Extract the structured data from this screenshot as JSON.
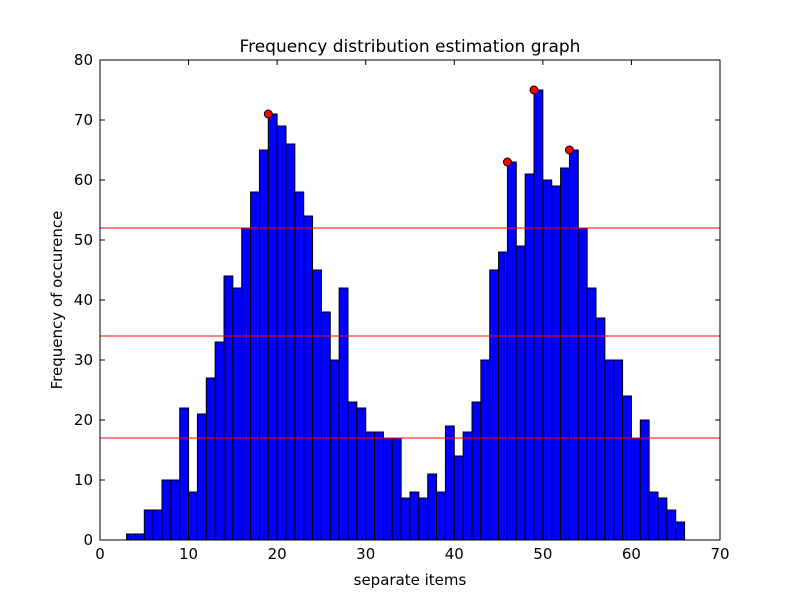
{
  "chart_data": {
    "type": "bar",
    "title": "Frequency distribution estimation graph",
    "xlabel": "separate items",
    "ylabel": "Frequency of occurence",
    "xlim": [
      0,
      70
    ],
    "ylim": [
      0,
      80
    ],
    "xticks": [
      "0",
      "10",
      "20",
      "30",
      "40",
      "50",
      "60",
      "70"
    ],
    "yticks": [
      "0",
      "10",
      "20",
      "30",
      "40",
      "50",
      "60",
      "70",
      "80"
    ],
    "grid": false,
    "bar_width": 1,
    "bar_color": "#0000ff",
    "bar_edge_color": "#000000",
    "x": [
      3,
      4,
      5,
      6,
      7,
      8,
      9,
      10,
      11,
      12,
      13,
      14,
      15,
      16,
      17,
      18,
      19,
      20,
      21,
      22,
      23,
      24,
      25,
      26,
      27,
      28,
      29,
      30,
      31,
      32,
      33,
      34,
      35,
      36,
      37,
      38,
      39,
      40,
      41,
      42,
      43,
      44,
      45,
      46,
      47,
      48,
      49,
      50,
      51,
      52,
      53,
      54,
      55,
      56,
      57,
      58,
      59,
      60,
      61,
      62,
      63,
      64,
      65
    ],
    "values": [
      1,
      1,
      5,
      5,
      10,
      10,
      22,
      8,
      21,
      27,
      33,
      44,
      42,
      52,
      58,
      65,
      71,
      69,
      66,
      58,
      54,
      45,
      38,
      30,
      42,
      23,
      22,
      18,
      18,
      17,
      17,
      7,
      8,
      7,
      11,
      8,
      19,
      14,
      18,
      23,
      30,
      45,
      48,
      63,
      49,
      61,
      75,
      60,
      59,
      62,
      65,
      52,
      42,
      37,
      30,
      30,
      24,
      17,
      20,
      8,
      7,
      5,
      3
    ],
    "reference_lines": {
      "color": "#ff0000",
      "y": [
        17,
        34,
        52
      ]
    },
    "peaks": {
      "color": "#ff0000",
      "points": [
        {
          "x": 19,
          "y": 71
        },
        {
          "x": 46,
          "y": 63
        },
        {
          "x": 49,
          "y": 75
        },
        {
          "x": 53,
          "y": 65
        }
      ]
    }
  }
}
